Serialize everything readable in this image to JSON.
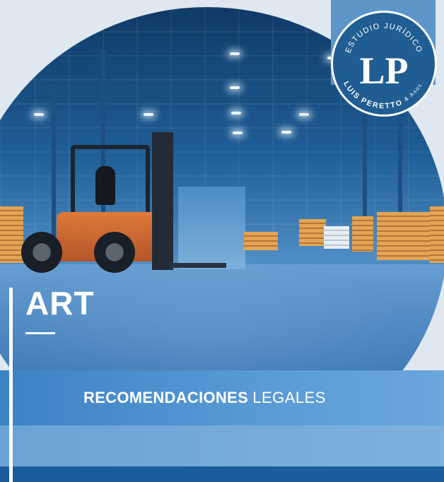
{
  "logo": {
    "top_text": "ESTUDIO JURÍDICO",
    "monogram": "LP",
    "bottom_name": "LUIS PERETTO",
    "bottom_suffix": "& Asoc."
  },
  "title": "ART",
  "subtitle": {
    "bold": "RECOMENDACIONES",
    "regular": "LEGALES"
  },
  "colors": {
    "brand_blue": "#1f5d93",
    "band_blue": "#3d82c4",
    "bottom_blue": "#1b5d9b"
  }
}
